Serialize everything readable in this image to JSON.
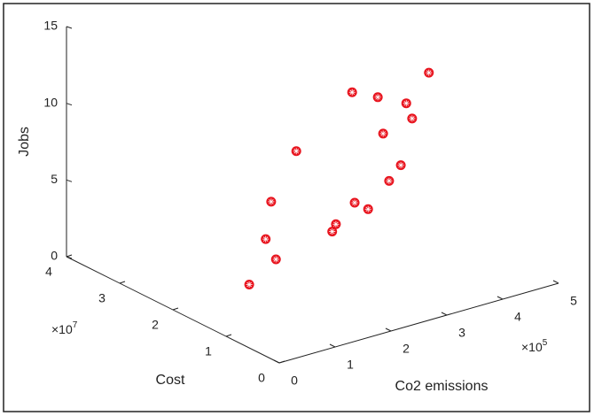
{
  "chart_data": {
    "type": "scatter3d",
    "xlabel": "Co2 emissions",
    "ylabel": "Cost",
    "zlabel": "Jobs",
    "x_multiplier": {
      "base": "×10",
      "exponent": "5"
    },
    "y_multiplier": {
      "base": "×10",
      "exponent": "7"
    },
    "color": "#e8141e",
    "xlim": [
      0,
      500000
    ],
    "ylim": [
      0,
      40000000
    ],
    "zlim": [
      0,
      15
    ],
    "xticks": [
      {
        "value": 0,
        "label": "0"
      },
      {
        "value": 100000,
        "label": "1"
      },
      {
        "value": 200000,
        "label": "2"
      },
      {
        "value": 300000,
        "label": "3"
      },
      {
        "value": 400000,
        "label": "4"
      },
      {
        "value": 500000,
        "label": "5"
      }
    ],
    "yticks": [
      {
        "value": 0,
        "label": "0"
      },
      {
        "value": 10000000,
        "label": "1"
      },
      {
        "value": 20000000,
        "label": "2"
      },
      {
        "value": 30000000,
        "label": "3"
      },
      {
        "value": 40000000,
        "label": "4"
      }
    ],
    "zticks": [
      0,
      5,
      10,
      15
    ],
    "x": [
      50000,
      75000,
      50000,
      75000,
      100000,
      150000,
      150000,
      175000,
      200000,
      200000,
      225000,
      225000,
      250000,
      250000,
      275000,
      275000,
      325000
    ],
    "y": [
      10900000,
      8500000,
      7800000,
      9400000,
      7300000,
      5800000,
      5100000,
      4200000,
      4300000,
      7300000,
      5100000,
      4100000,
      5600000,
      3400000,
      5000000,
      3900000,
      6000000
    ],
    "z": [
      2.7,
      4.5,
      6.2,
      8.1,
      11.5,
      6.0,
      6.6,
      7.9,
      7.2,
      14.3,
      14.1,
      11.9,
      8.3,
      9.7,
      13.2,
      12.4,
      14.5
    ]
  }
}
